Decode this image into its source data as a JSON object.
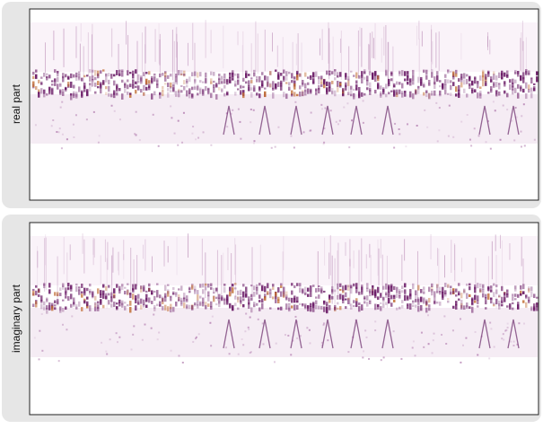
{
  "panels": [
    {
      "label": "real part"
    },
    {
      "label": "imaginary part"
    }
  ]
}
